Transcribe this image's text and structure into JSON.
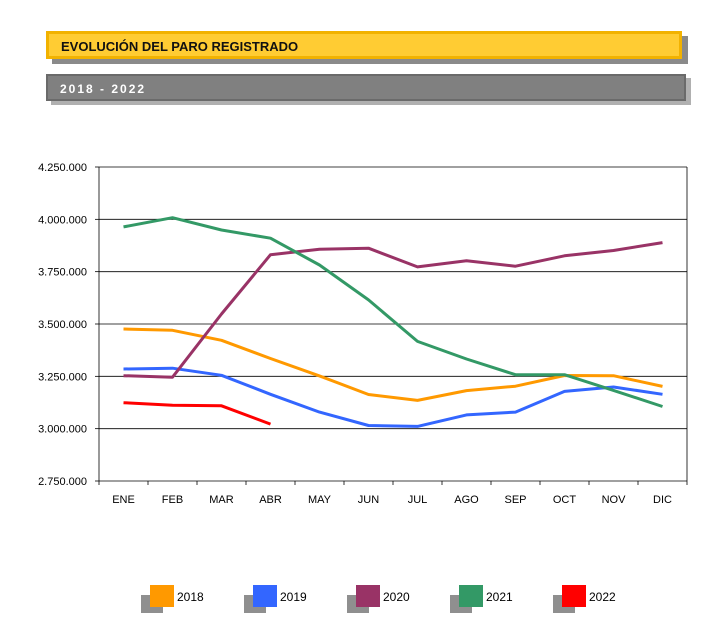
{
  "header": {
    "title": "EVOLUCIÓN DEL PARO REGISTRADO",
    "subtitle": "2018 - 2022"
  },
  "colors": {
    "title_bg": "#ffcc33",
    "title_border": "#f2b200",
    "subtitle_bg": "#808080",
    "shadow": "#8a8a8a"
  },
  "chart_data": {
    "type": "line",
    "title": "EVOLUCIÓN DEL PARO REGISTRADO",
    "subtitle": "2018 - 2022",
    "xlabel": "",
    "ylabel": "",
    "categories": [
      "ENE",
      "FEB",
      "MAR",
      "ABR",
      "MAY",
      "JUN",
      "JUL",
      "AGO",
      "SEP",
      "OCT",
      "NOV",
      "DIC"
    ],
    "ylim": [
      2750000,
      4250000
    ],
    "y_ticks": [
      2750000,
      3000000,
      3250000,
      3500000,
      3750000,
      4000000,
      4250000
    ],
    "y_tick_labels": [
      "2.750.000",
      "3.000.000",
      "3.250.000",
      "3.500.000",
      "3.750.000",
      "4.000.000",
      "4.250.000"
    ],
    "grid": "horizontal",
    "legend_position": "bottom",
    "series": [
      {
        "name": "2018",
        "color": "#ff9900",
        "values": [
          3476000,
          3470000,
          3422000,
          3335000,
          3252000,
          3163000,
          3135000,
          3182000,
          3203000,
          3254000,
          3253000,
          3202000
        ]
      },
      {
        "name": "2019",
        "color": "#3366ff",
        "values": [
          3285000,
          3289000,
          3255000,
          3164000,
          3079000,
          3015000,
          3011000,
          3066000,
          3079000,
          3178000,
          3199000,
          3164000
        ]
      },
      {
        "name": "2020",
        "color": "#993366",
        "values": [
          3253000,
          3246000,
          3548000,
          3831000,
          3857000,
          3862000,
          3773000,
          3802000,
          3776000,
          3826000,
          3851000,
          3889000
        ]
      },
      {
        "name": "2021",
        "color": "#339966",
        "values": [
          3964000,
          4008000,
          3949000,
          3910000,
          3782000,
          3615000,
          3417000,
          3333000,
          3258000,
          3258000,
          3183000,
          3106000
        ]
      },
      {
        "name": "2022",
        "color": "#ff0000",
        "values": [
          3124000,
          3112000,
          3109000,
          3022000,
          null,
          null,
          null,
          null,
          null,
          null,
          null,
          null
        ]
      }
    ]
  }
}
